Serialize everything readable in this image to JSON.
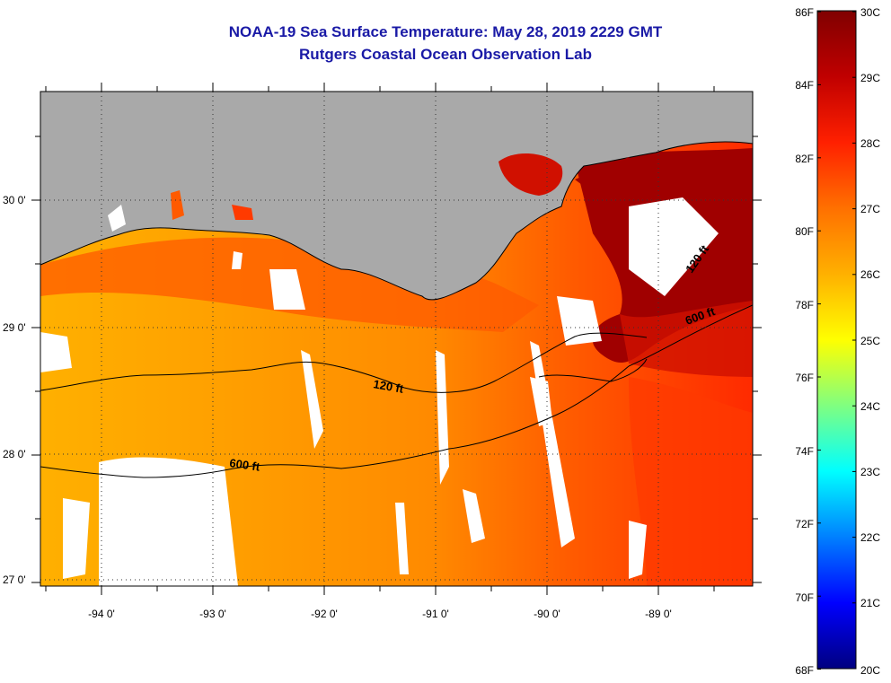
{
  "title": "NOAA-19 Sea Surface Temperature:  May 28, 2019 2229 GMT",
  "subtitle": "Rutgers Coastal Ocean Observation Lab",
  "lat_labels": [
    "30 0'",
    "29 0'",
    "28 0'",
    "27 0'"
  ],
  "lon_labels": [
    "-94 0'",
    "-93 0'",
    "-92 0'",
    "-91 0'",
    "-90 0'",
    "-89 0'"
  ],
  "contours": {
    "c120": "120 ft",
    "c600": "600 ft",
    "c120_east": "120 ft",
    "c600_east": "600 ft"
  },
  "colorbar": {
    "fahrenheit": [
      "86F",
      "84F",
      "82F",
      "80F",
      "78F",
      "76F",
      "74F",
      "72F",
      "70F",
      "68F"
    ],
    "celsius": [
      "30C",
      "29C",
      "28C",
      "27C",
      "26C",
      "25C",
      "24C",
      "23C",
      "22C",
      "21C",
      "20C"
    ],
    "colors": [
      "#800000",
      "#c00000",
      "#ff2000",
      "#ff7000",
      "#ffb000",
      "#ffff00",
      "#80ff80",
      "#00ffff",
      "#0080ff",
      "#0000ff",
      "#000080"
    ]
  },
  "colors": {
    "land": "#a9a9a9",
    "title": "#1a1aa6"
  }
}
